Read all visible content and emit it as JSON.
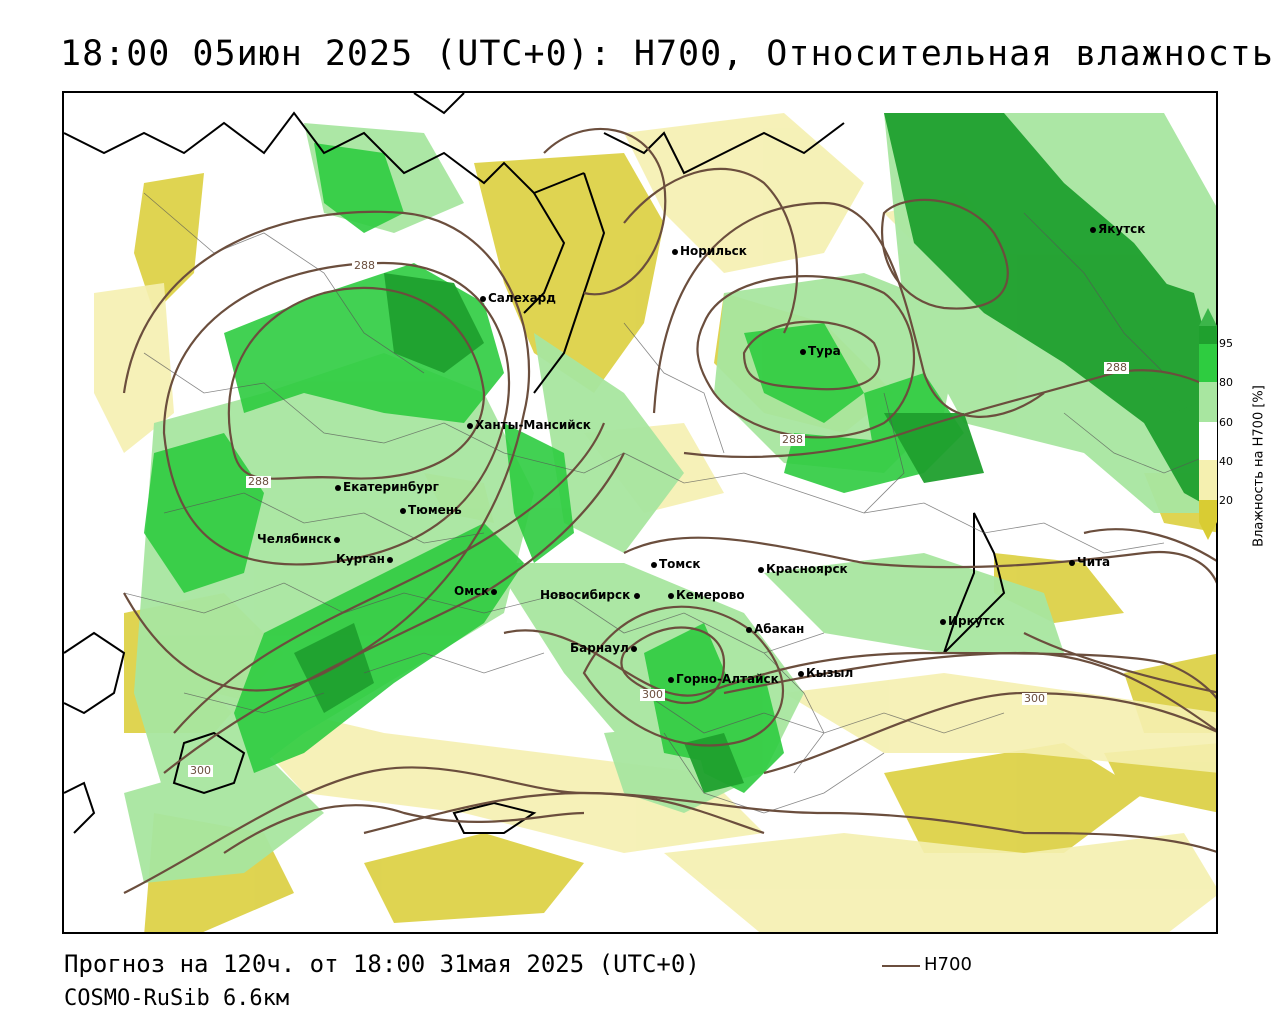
{
  "title": "18:00 05июн 2025 (UTC+0): H700, Относительная влажность",
  "footer": {
    "forecast": "Прогноз на 120ч. от 18:00 31мая 2025 (UTC+0)",
    "model": "COSMO-RuSib 6.6км",
    "line_legend": "H700"
  },
  "legend": {
    "title": "Влажность на H700 [%]",
    "ticks": [
      "95",
      "80",
      "60",
      "40",
      "20"
    ],
    "colors": {
      "c95": "#3cb54a",
      "c80": "#2ecc40",
      "c60": "#a8e6a0",
      "c40": "#ffffff",
      "c20": "#f5f0b0",
      "c0": "#d9cc33"
    }
  },
  "contour_color": "#6b4e3d",
  "contour_labels": [
    "288",
    "288",
    "288",
    "288",
    "300",
    "300",
    "300"
  ],
  "cities": [
    {
      "name": "Норильск"
    },
    {
      "name": "Якутск"
    },
    {
      "name": "Салехард"
    },
    {
      "name": "Тура"
    },
    {
      "name": "Ханты-Мансийск"
    },
    {
      "name": "Екатеринбург"
    },
    {
      "name": "Тюмень"
    },
    {
      "name": "Челябинск"
    },
    {
      "name": "Курган"
    },
    {
      "name": "Омск"
    },
    {
      "name": "Томск"
    },
    {
      "name": "Красноярск"
    },
    {
      "name": "Новосибирск"
    },
    {
      "name": "Кемерово"
    },
    {
      "name": "Барнаул"
    },
    {
      "name": "Абакан"
    },
    {
      "name": "Горно-Алтайск"
    },
    {
      "name": "Кызыл"
    },
    {
      "name": "Иркутск"
    },
    {
      "name": "Чита"
    }
  ]
}
